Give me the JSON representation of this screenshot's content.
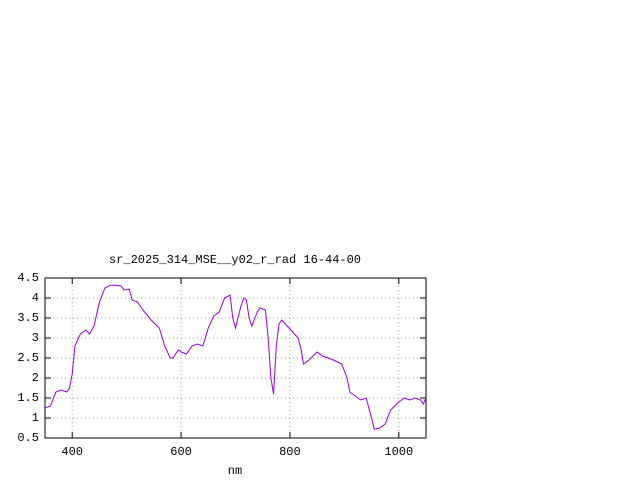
{
  "chart_data": {
    "type": "line",
    "title": "sr_2025_314_MSE__y02_r_rad 16-44-00",
    "x_label": "nm",
    "x": [
      350,
      360,
      370,
      380,
      390,
      395,
      400,
      405,
      415,
      425,
      432,
      440,
      450,
      460,
      470,
      480,
      490,
      495,
      505,
      510,
      520,
      530,
      545,
      560,
      570,
      580,
      585,
      595,
      600,
      610,
      620,
      630,
      640,
      650,
      660,
      670,
      680,
      690,
      695,
      700,
      710,
      715,
      720,
      725,
      730,
      740,
      745,
      755,
      760,
      765,
      770,
      775,
      780,
      785,
      795,
      805,
      815,
      820,
      825,
      835,
      850,
      860,
      870,
      880,
      895,
      905,
      910,
      920,
      930,
      940,
      950,
      955,
      965,
      975,
      985,
      1000,
      1010,
      1020,
      1030,
      1040,
      1045,
      1050
    ],
    "series": [
      {
        "color": "#9400d3",
        "values": [
          1.25,
          1.3,
          1.65,
          1.7,
          1.65,
          1.75,
          2.1,
          2.8,
          3.1,
          3.2,
          3.1,
          3.3,
          3.9,
          4.25,
          4.32,
          4.32,
          4.3,
          4.2,
          4.22,
          3.95,
          3.9,
          3.7,
          3.45,
          3.25,
          2.8,
          2.5,
          2.5,
          2.7,
          2.65,
          2.6,
          2.8,
          2.85,
          2.8,
          3.25,
          3.55,
          3.65,
          4.0,
          4.07,
          3.5,
          3.25,
          3.8,
          4.0,
          3.95,
          3.5,
          3.3,
          3.65,
          3.75,
          3.7,
          3.0,
          2.0,
          1.6,
          2.8,
          3.35,
          3.45,
          3.3,
          3.15,
          3.0,
          2.75,
          2.35,
          2.45,
          2.65,
          2.55,
          2.5,
          2.45,
          2.35,
          2.0,
          1.65,
          1.55,
          1.45,
          1.5,
          1.0,
          0.72,
          0.75,
          0.85,
          1.2,
          1.4,
          1.5,
          1.45,
          1.5,
          1.45,
          1.35,
          1.5
        ]
      }
    ],
    "xlim": [
      350,
      1050
    ],
    "xticks": [
      400,
      600,
      800,
      1000
    ],
    "ylim": [
      0.5,
      4.5
    ],
    "yticks": [
      0.5,
      1,
      1.5,
      2,
      2.5,
      3,
      3.5,
      4,
      4.5
    ],
    "grid": true
  }
}
